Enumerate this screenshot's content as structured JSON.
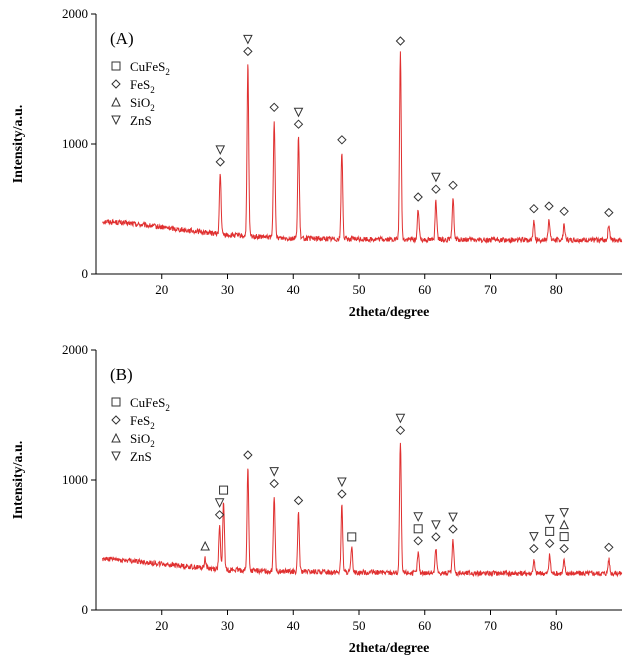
{
  "colors": {
    "trace": "#e03030",
    "axis": "#000000",
    "marker": "#333333"
  },
  "legend": [
    {
      "symbol": "square",
      "base": "CuFeS",
      "sub": "2"
    },
    {
      "symbol": "diamond",
      "base": "FeS",
      "sub": "2"
    },
    {
      "symbol": "triangle",
      "base": "SiO",
      "sub": "2"
    },
    {
      "symbol": "down-triangle",
      "base": "ZnS",
      "sub": ""
    }
  ],
  "chart_data": [
    {
      "type": "line",
      "title": "(A)",
      "xlabel": "2theta/degree",
      "ylabel": "Intensity/a.u.",
      "xlim": [
        10,
        90
      ],
      "ylim": [
        0,
        2000
      ],
      "xticks": [
        20,
        30,
        40,
        50,
        60,
        70,
        80
      ],
      "yticks": [
        0,
        1000,
        2000
      ],
      "grid": false,
      "legend_position": "top-left",
      "background": [
        [
          10,
          410
        ],
        [
          15,
          390
        ],
        [
          20,
          360
        ],
        [
          25,
          330
        ],
        [
          30,
          300
        ],
        [
          35,
          285
        ],
        [
          40,
          275
        ],
        [
          50,
          268
        ],
        [
          60,
          265
        ],
        [
          70,
          262
        ],
        [
          80,
          262
        ],
        [
          90,
          262
        ]
      ],
      "peaks": [
        {
          "x": 28.9,
          "y": 770
        },
        {
          "x": 33.1,
          "y": 1620
        },
        {
          "x": 37.1,
          "y": 1190
        },
        {
          "x": 40.8,
          "y": 1060
        },
        {
          "x": 47.4,
          "y": 940
        },
        {
          "x": 56.3,
          "y": 1700
        },
        {
          "x": 59.0,
          "y": 500
        },
        {
          "x": 61.7,
          "y": 560
        },
        {
          "x": 64.3,
          "y": 590
        },
        {
          "x": 76.6,
          "y": 410
        },
        {
          "x": 78.9,
          "y": 430
        },
        {
          "x": 81.2,
          "y": 390
        },
        {
          "x": 88.0,
          "y": 380
        }
      ],
      "markers": [
        {
          "x": 28.9,
          "symbols": [
            "diamond",
            "down-triangle"
          ]
        },
        {
          "x": 33.1,
          "symbols": [
            "diamond",
            "down-triangle"
          ]
        },
        {
          "x": 37.1,
          "symbols": [
            "diamond"
          ]
        },
        {
          "x": 40.8,
          "symbols": [
            "diamond",
            "down-triangle"
          ]
        },
        {
          "x": 47.4,
          "symbols": [
            "diamond"
          ]
        },
        {
          "x": 56.3,
          "symbols": [
            "diamond"
          ]
        },
        {
          "x": 59.0,
          "symbols": [
            "diamond"
          ]
        },
        {
          "x": 61.7,
          "symbols": [
            "diamond",
            "down-triangle"
          ]
        },
        {
          "x": 64.3,
          "symbols": [
            "diamond"
          ]
        },
        {
          "x": 76.6,
          "symbols": [
            "diamond"
          ]
        },
        {
          "x": 78.9,
          "symbols": [
            "diamond"
          ]
        },
        {
          "x": 81.2,
          "symbols": [
            "diamond"
          ]
        },
        {
          "x": 88.0,
          "symbols": [
            "diamond"
          ]
        }
      ]
    },
    {
      "type": "line",
      "title": "(B)",
      "xlabel": "2theta/degree",
      "ylabel": "Intensity/a.u.",
      "xlim": [
        10,
        90
      ],
      "ylim": [
        0,
        2000
      ],
      "xticks": [
        20,
        30,
        40,
        50,
        60,
        70,
        80
      ],
      "yticks": [
        0,
        1000,
        2000
      ],
      "grid": false,
      "legend_position": "top-left",
      "background": [
        [
          10,
          400
        ],
        [
          15,
          380
        ],
        [
          20,
          355
        ],
        [
          25,
          330
        ],
        [
          30,
          310
        ],
        [
          35,
          300
        ],
        [
          40,
          295
        ],
        [
          50,
          290
        ],
        [
          60,
          285
        ],
        [
          70,
          283
        ],
        [
          80,
          282
        ],
        [
          90,
          282
        ]
      ],
      "peaks": [
        {
          "x": 26.6,
          "y": 400
        },
        {
          "x": 28.8,
          "y": 640
        },
        {
          "x": 29.4,
          "y": 830
        },
        {
          "x": 33.1,
          "y": 1100
        },
        {
          "x": 37.1,
          "y": 880
        },
        {
          "x": 40.8,
          "y": 750
        },
        {
          "x": 47.4,
          "y": 800
        },
        {
          "x": 48.9,
          "y": 470
        },
        {
          "x": 56.3,
          "y": 1290
        },
        {
          "x": 59.0,
          "y": 440
        },
        {
          "x": 61.7,
          "y": 470
        },
        {
          "x": 64.3,
          "y": 530
        },
        {
          "x": 76.6,
          "y": 380
        },
        {
          "x": 79.0,
          "y": 420
        },
        {
          "x": 81.2,
          "y": 380
        },
        {
          "x": 88.0,
          "y": 390
        }
      ],
      "markers": [
        {
          "x": 26.6,
          "symbols": [
            "triangle"
          ]
        },
        {
          "x": 28.8,
          "symbols": [
            "diamond",
            "down-triangle"
          ]
        },
        {
          "x": 29.4,
          "symbols": [
            "square"
          ]
        },
        {
          "x": 33.1,
          "symbols": [
            "diamond"
          ]
        },
        {
          "x": 37.1,
          "symbols": [
            "diamond",
            "down-triangle"
          ]
        },
        {
          "x": 40.8,
          "symbols": [
            "diamond"
          ]
        },
        {
          "x": 47.4,
          "symbols": [
            "diamond",
            "down-triangle"
          ]
        },
        {
          "x": 48.9,
          "symbols": [
            "square"
          ]
        },
        {
          "x": 56.3,
          "symbols": [
            "diamond",
            "down-triangle"
          ]
        },
        {
          "x": 59.0,
          "symbols": [
            "diamond",
            "square",
            "down-triangle"
          ]
        },
        {
          "x": 61.7,
          "symbols": [
            "diamond",
            "down-triangle"
          ]
        },
        {
          "x": 64.3,
          "symbols": [
            "diamond",
            "down-triangle"
          ]
        },
        {
          "x": 76.6,
          "symbols": [
            "diamond",
            "down-triangle"
          ]
        },
        {
          "x": 79.0,
          "symbols": [
            "diamond",
            "square",
            "down-triangle"
          ]
        },
        {
          "x": 81.2,
          "symbols": [
            "diamond",
            "square",
            "triangle",
            "down-triangle"
          ]
        },
        {
          "x": 88.0,
          "symbols": [
            "diamond"
          ]
        }
      ]
    }
  ]
}
